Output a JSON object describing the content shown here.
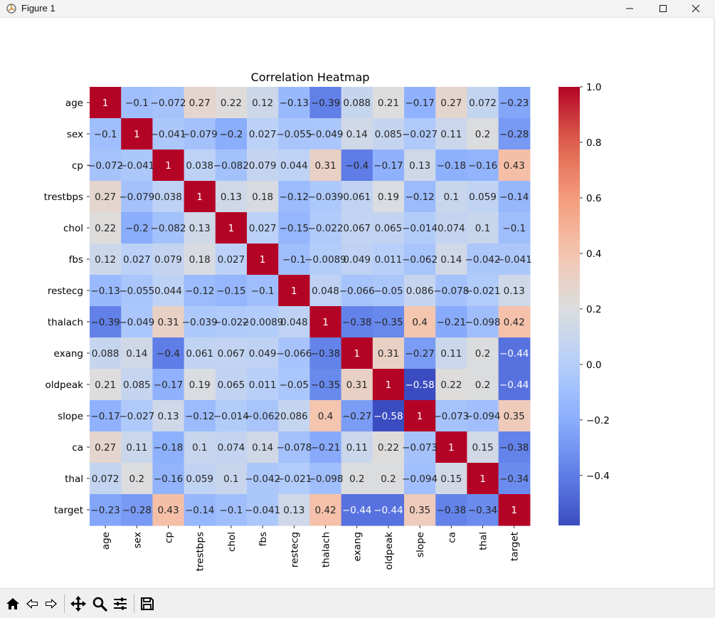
{
  "window": {
    "title": "Figure 1"
  },
  "toolbar": {
    "buttons": [
      {
        "name": "home-icon"
      },
      {
        "name": "back-icon"
      },
      {
        "name": "forward-icon"
      },
      {
        "name": "pan-icon"
      },
      {
        "name": "zoom-icon"
      },
      {
        "name": "configure-subplots-icon"
      },
      {
        "name": "save-icon"
      }
    ]
  },
  "chart_data": {
    "type": "heatmap",
    "title": "Correlation Heatmap",
    "xlabel": "",
    "ylabel": "",
    "labels": [
      "age",
      "sex",
      "cp",
      "trestbps",
      "chol",
      "fbs",
      "restecg",
      "thalach",
      "exang",
      "oldpeak",
      "slope",
      "ca",
      "thal",
      "target"
    ],
    "values": [
      [
        1,
        -0.1,
        -0.072,
        0.27,
        0.22,
        0.12,
        -0.13,
        -0.39,
        0.088,
        0.21,
        -0.17,
        0.27,
        0.072,
        -0.23
      ],
      [
        -0.1,
        1,
        -0.041,
        -0.079,
        -0.2,
        0.027,
        -0.055,
        -0.049,
        0.14,
        0.085,
        -0.027,
        0.11,
        0.2,
        -0.28
      ],
      [
        -0.072,
        -0.041,
        1,
        0.038,
        -0.082,
        0.079,
        0.044,
        0.31,
        -0.4,
        -0.17,
        0.13,
        -0.18,
        -0.16,
        0.43
      ],
      [
        0.27,
        -0.079,
        0.038,
        1,
        0.13,
        0.18,
        -0.12,
        -0.039,
        0.061,
        0.19,
        -0.12,
        0.1,
        0.059,
        -0.14
      ],
      [
        0.22,
        -0.2,
        -0.082,
        0.13,
        1,
        0.027,
        -0.15,
        -0.022,
        0.067,
        0.065,
        -0.014,
        0.074,
        0.1,
        -0.1
      ],
      [
        0.12,
        0.027,
        0.079,
        0.18,
        0.027,
        1,
        -0.1,
        -0.0089,
        0.049,
        0.011,
        -0.062,
        0.14,
        -0.042,
        -0.041
      ],
      [
        -0.13,
        -0.055,
        0.044,
        -0.12,
        -0.15,
        -0.1,
        1,
        0.048,
        -0.066,
        -0.05,
        0.086,
        -0.078,
        -0.021,
        0.13
      ],
      [
        -0.39,
        -0.049,
        0.31,
        -0.039,
        -0.022,
        -0.0089,
        0.048,
        1,
        -0.38,
        -0.35,
        0.4,
        -0.21,
        -0.098,
        0.42
      ],
      [
        0.088,
        0.14,
        -0.4,
        0.061,
        0.067,
        0.049,
        -0.066,
        -0.38,
        1,
        0.31,
        -0.27,
        0.11,
        0.2,
        -0.44
      ],
      [
        0.21,
        0.085,
        -0.17,
        0.19,
        0.065,
        0.011,
        -0.05,
        -0.35,
        0.31,
        1,
        -0.58,
        0.22,
        0.2,
        -0.44
      ],
      [
        -0.17,
        -0.027,
        0.13,
        -0.12,
        -0.014,
        -0.062,
        0.086,
        0.4,
        -0.27,
        -0.58,
        1,
        -0.073,
        -0.094,
        0.35
      ],
      [
        0.27,
        0.11,
        -0.18,
        0.1,
        0.074,
        0.14,
        -0.078,
        -0.21,
        0.11,
        0.22,
        -0.073,
        1,
        0.15,
        -0.38
      ],
      [
        0.072,
        0.2,
        -0.16,
        0.059,
        0.1,
        -0.042,
        -0.021,
        -0.098,
        0.2,
        0.2,
        -0.094,
        0.15,
        1,
        -0.34
      ],
      [
        -0.23,
        -0.28,
        0.43,
        -0.14,
        -0.1,
        -0.041,
        0.13,
        0.42,
        -0.44,
        -0.44,
        0.35,
        -0.38,
        -0.34,
        1
      ]
    ],
    "colormap": "coolwarm",
    "colorbar": {
      "vmin": -0.58,
      "vmax": 1.0,
      "ticks": [
        1.0,
        0.8,
        0.6,
        0.4,
        0.2,
        0.0,
        -0.2,
        -0.4
      ],
      "tick_labels": [
        "1.0",
        "0.8",
        "0.6",
        "0.4",
        "0.2",
        "0.0",
        "−0.2",
        "−0.4"
      ]
    }
  }
}
